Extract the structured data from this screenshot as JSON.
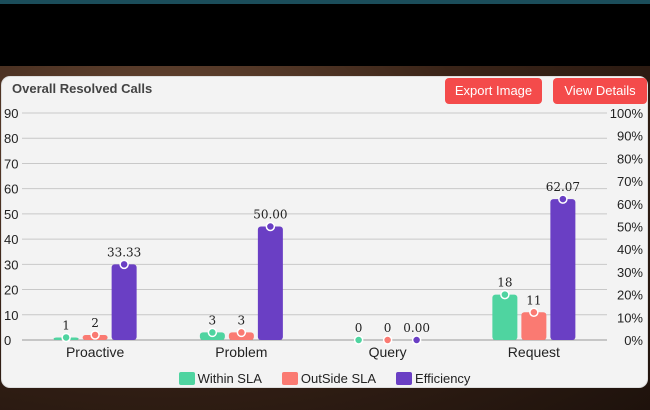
{
  "card": {
    "title": "Overall Resolved Calls",
    "export_label": "Export Image",
    "view_label": "View Details"
  },
  "colors": {
    "within": "#4fd4a0",
    "outside": "#fa7a72",
    "efficiency": "#6a3fc4",
    "button": "#f44b4b"
  },
  "chart_data": {
    "type": "bar",
    "categories": [
      "Proactive",
      "Problem",
      "Query",
      "Request"
    ],
    "series": [
      {
        "name": "Within SLA",
        "axis": "left",
        "values": [
          1,
          3,
          0,
          18
        ],
        "labels": [
          "1",
          "3",
          "0",
          "18"
        ]
      },
      {
        "name": "OutSide SLA",
        "axis": "left",
        "values": [
          2,
          3,
          0,
          11
        ],
        "labels": [
          "2",
          "3",
          "0",
          "11"
        ]
      },
      {
        "name": "Efficiency",
        "axis": "right",
        "values": [
          33.33,
          50.0,
          0.0,
          62.07
        ],
        "labels": [
          "33.33",
          "50.00",
          "0.00",
          "62.07"
        ]
      }
    ],
    "y_left": {
      "lim": [
        0,
        90
      ],
      "ticks": [
        "0",
        "10",
        "20",
        "30",
        "40",
        "50",
        "60",
        "70",
        "80",
        "90"
      ]
    },
    "y_right": {
      "lim": [
        0,
        100
      ],
      "ticks": [
        "0%",
        "10%",
        "20%",
        "30%",
        "40%",
        "50%",
        "60%",
        "70%",
        "80%",
        "90%",
        "100%"
      ]
    },
    "grid": true,
    "legend": "bottom"
  }
}
